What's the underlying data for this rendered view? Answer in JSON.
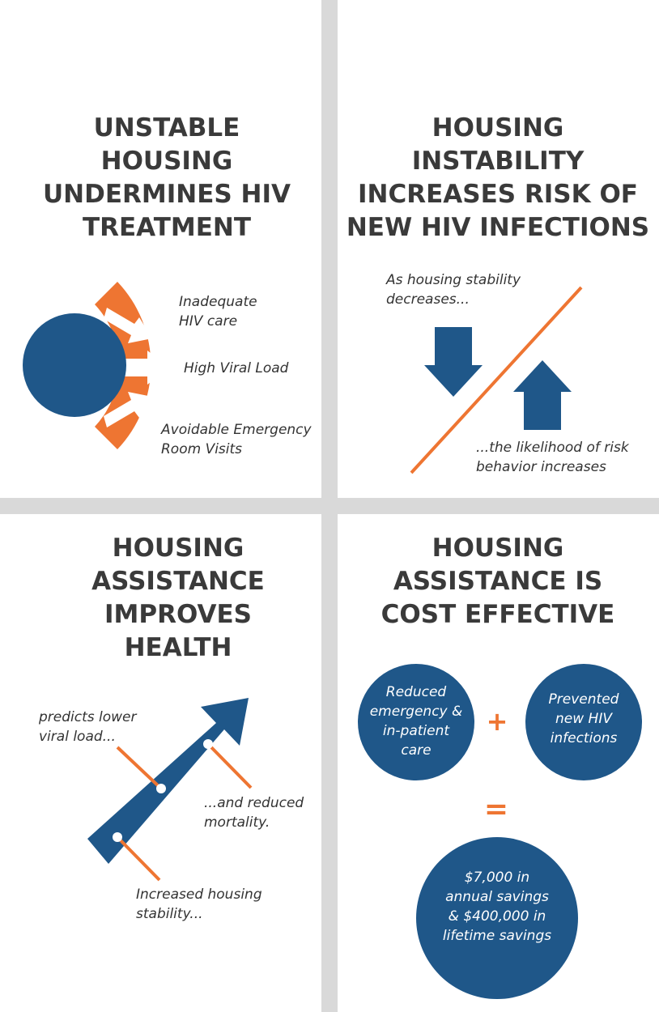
{
  "colors": {
    "navy": "#1f5789",
    "orange": "#ee7532",
    "divider": "#d9d9d9",
    "heading": "#3a3a3a"
  },
  "panel1": {
    "title_lines": [
      "UNSTABLE",
      "HOUSING",
      "UNDERMINES HIV",
      "TREATMENT"
    ],
    "labels": {
      "inadequate": [
        "Inadequate",
        "HIV care"
      ],
      "viral": "High Viral Load",
      "emergency": [
        "Avoidable Emergency",
        "Room Visits"
      ]
    }
  },
  "panel2": {
    "title_lines": [
      "HOUSING",
      "INSTABILITY",
      "INCREASES RISK OF",
      "NEW HIV INFECTIONS"
    ],
    "top_label": [
      "As housing stability",
      "decreases..."
    ],
    "bottom_label": [
      "...the likelihood of risk",
      "behavior increases"
    ]
  },
  "panel3": {
    "title_lines": [
      "HOUSING",
      "ASSISTANCE",
      "IMPROVES",
      "HEALTH"
    ],
    "label_viral": [
      "predicts lower",
      "viral load..."
    ],
    "label_mortality": [
      "...and reduced",
      "mortality."
    ],
    "label_stability": [
      "Increased housing",
      "stability..."
    ]
  },
  "panel4": {
    "title_lines": [
      "HOUSING",
      "ASSISTANCE IS",
      "COST EFFECTIVE"
    ],
    "circle_reduced": [
      "Reduced",
      "emergency &",
      "in-patient",
      "care"
    ],
    "plus_sign": "+",
    "circle_prevented": [
      "Prevented",
      "new HIV",
      "infections"
    ],
    "equals_sign": "=",
    "circle_savings": [
      "$7,000 in",
      "annual savings",
      "&  $400,000 in",
      "lifetime savings"
    ]
  }
}
